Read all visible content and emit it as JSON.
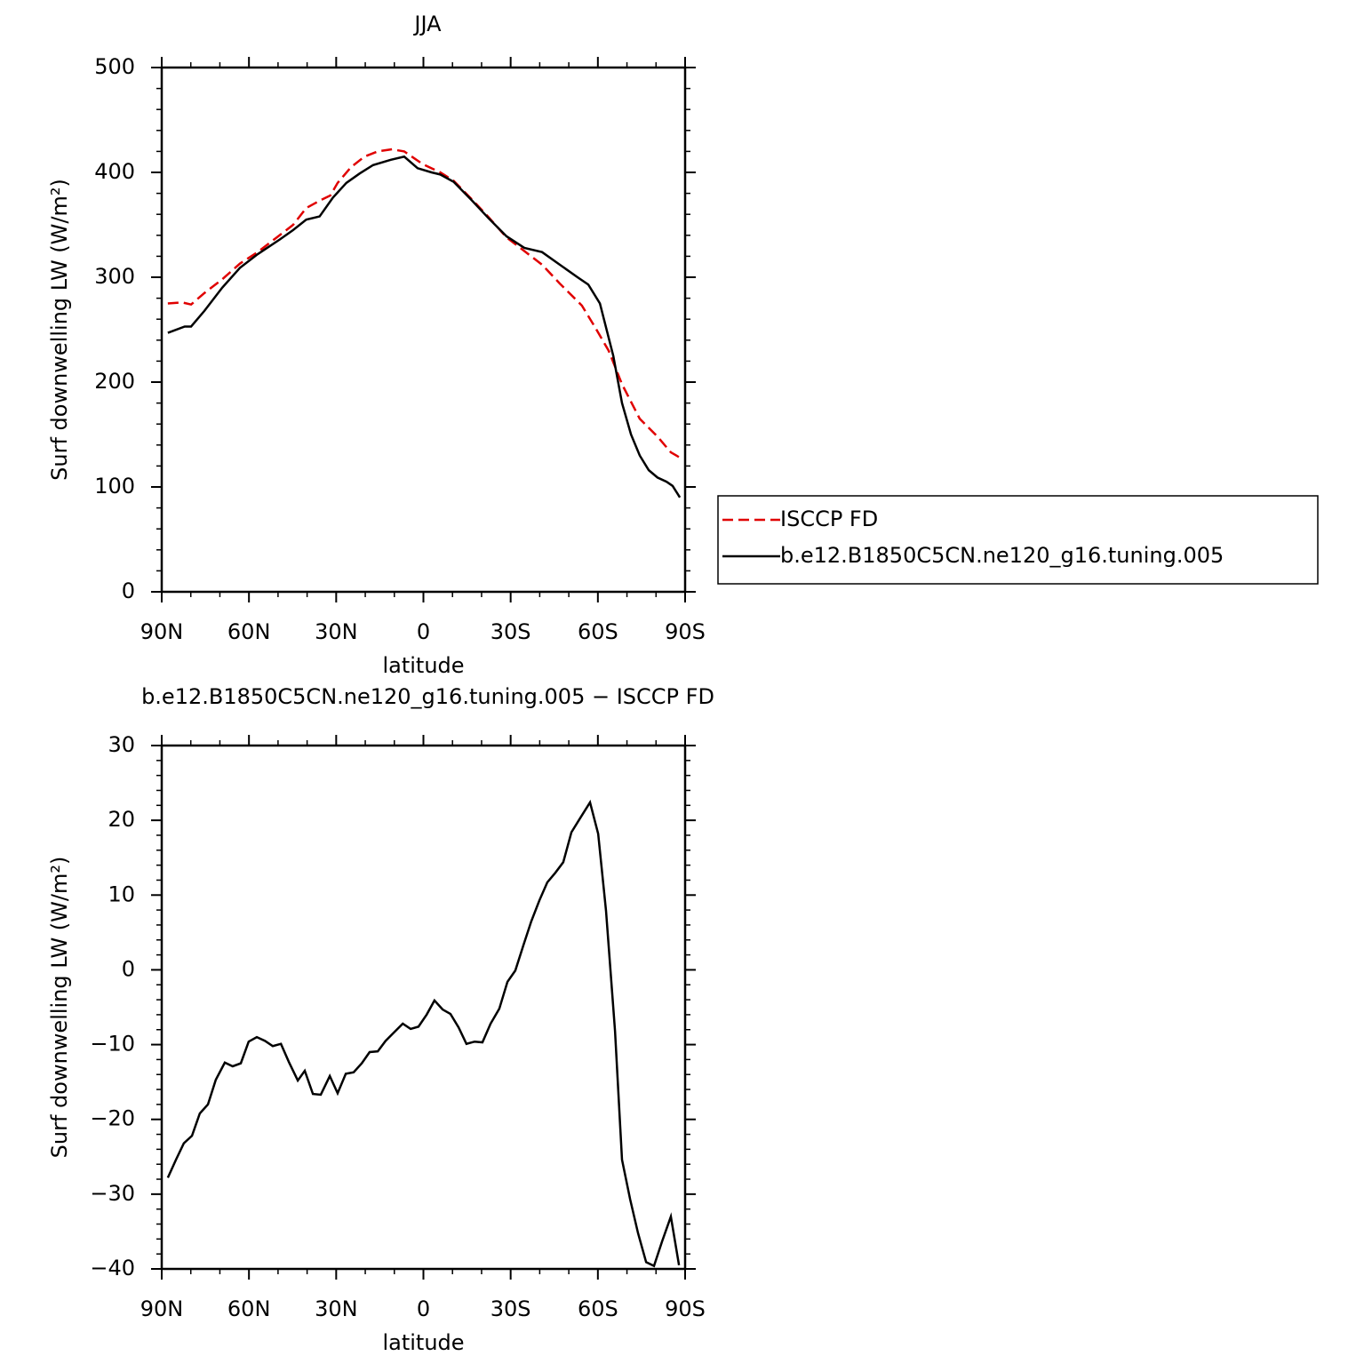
{
  "chart_data": [
    {
      "type": "line",
      "title": "JJA",
      "xlabel": "latitude",
      "ylabel": "Surf downwelling LW (W/m²)",
      "xlim": [
        90,
        -90
      ],
      "xticks": [
        {
          "value": 90,
          "label": "90N"
        },
        {
          "value": 60,
          "label": "60N"
        },
        {
          "value": 30,
          "label": "30N"
        },
        0,
        {
          "value": -30,
          "label": "30S"
        },
        {
          "value": -60,
          "label": "60S"
        },
        {
          "value": -90,
          "label": "90S"
        }
      ],
      "xminor": [
        80,
        70,
        50,
        40,
        20,
        10,
        -10,
        -20,
        -40,
        -50,
        -70,
        -80
      ],
      "ylim": [
        0,
        500
      ],
      "yticks": [
        0,
        100,
        200,
        300,
        400,
        500
      ],
      "yminor": [
        20,
        40,
        60,
        80,
        120,
        140,
        160,
        180,
        220,
        240,
        260,
        280,
        320,
        340,
        360,
        380,
        420,
        440,
        460,
        480
      ],
      "legend": "right",
      "series": [
        {
          "name": "ISCCP FD",
          "color": "#e00000",
          "dash": "dashed",
          "x": [
            87.9,
            83.0,
            79.9,
            75.3,
            69.2,
            63.1,
            57.0,
            50.9,
            44.8,
            40.3,
            35.7,
            32.0,
            29.5,
            24.9,
            20.3,
            15.7,
            10.8,
            6.6,
            0.3,
            -5.8,
            -10.4,
            -16.4,
            -22.5,
            -28.6,
            -34.7,
            -40.8,
            -46.9,
            -54.5,
            -59.1,
            -63.7,
            -68.3,
            -74.4,
            -80.5,
            -85.1,
            -88.2
          ],
          "values": [
            275,
            276,
            274,
            285,
            298,
            313,
            324,
            337,
            350,
            366,
            373,
            378,
            390,
            405,
            415,
            420,
            422,
            420,
            408,
            400,
            392,
            375,
            357,
            338,
            325,
            312,
            294,
            273,
            252,
            230,
            198,
            165,
            148,
            133,
            128
          ]
        },
        {
          "name": "b.e12.B1850C5CN.ne120_g16.tuning.005",
          "color": "#000000",
          "dash": "solid",
          "x": [
            87.9,
            82.1,
            79.9,
            75.3,
            69.2,
            63.1,
            57.0,
            49.4,
            44.8,
            40.3,
            35.7,
            31.1,
            26.5,
            21.9,
            17.3,
            11.2,
            6.6,
            2.0,
            -2.8,
            -5.8,
            -10.4,
            -16.4,
            -22.5,
            -28.6,
            -34.7,
            -40.8,
            -46.9,
            -53.0,
            -56.7,
            -60.7,
            -65.3,
            -68.3,
            -71.4,
            -74.4,
            -77.5,
            -80.5,
            -83.6,
            -85.7,
            -88.2
          ],
          "values": [
            247,
            253,
            253,
            268,
            290,
            309,
            322,
            336,
            345,
            355,
            358,
            376,
            390,
            399,
            407,
            412,
            415,
            404,
            400,
            398,
            391,
            374,
            356,
            339,
            328,
            324,
            312,
            300,
            293,
            275,
            225,
            180,
            150,
            130,
            116,
            109,
            105,
            101,
            90
          ]
        }
      ]
    },
    {
      "type": "line",
      "title": "b.e12.B1850C5CN.ne120_g16.tuning.005 − ISCCP FD",
      "xlabel": "latitude",
      "ylabel": "Surf downwelling LW (W/m²)",
      "xlim": [
        90,
        -90
      ],
      "xticks": [
        {
          "value": 90,
          "label": "90N"
        },
        {
          "value": 60,
          "label": "60N"
        },
        {
          "value": 30,
          "label": "30N"
        },
        0,
        {
          "value": -30,
          "label": "30S"
        },
        {
          "value": -60,
          "label": "60S"
        },
        {
          "value": -90,
          "label": "90S"
        }
      ],
      "xminor": [
        80,
        70,
        50,
        40,
        20,
        10,
        -10,
        -20,
        -40,
        -50,
        -70,
        -80
      ],
      "ylim": [
        -40,
        30
      ],
      "yticks": [
        {
          "value": -40,
          "label": "−40"
        },
        {
          "value": -30,
          "label": "−30"
        },
        {
          "value": -20,
          "label": "−20"
        },
        {
          "value": -10,
          "label": "−10"
        },
        0,
        10,
        20,
        30
      ],
      "yminor": [
        -38,
        -36,
        -34,
        -32,
        -28,
        -26,
        -24,
        -22,
        -18,
        -16,
        -14,
        -12,
        -8,
        -6,
        -4,
        -2,
        2,
        4,
        6,
        8,
        12,
        14,
        16,
        18,
        22,
        24,
        26,
        28
      ],
      "series": [
        {
          "color": "#000000",
          "dash": "solid",
          "x": [
            87.9,
            85.1,
            82.4,
            79.6,
            76.9,
            74.1,
            71.4,
            68.3,
            65.6,
            62.8,
            60.1,
            57.3,
            54.5,
            51.8,
            49.0,
            46.3,
            43.2,
            40.8,
            38.0,
            35.3,
            32.2,
            29.5,
            26.7,
            24.0,
            21.2,
            18.5,
            15.7,
            13.0,
            10.2,
            7.1,
            4.4,
            1.7,
            -1.1,
            -3.8,
            -6.6,
            -9.3,
            -12.1,
            -14.8,
            -17.6,
            -20.3,
            -23.1,
            -26.1,
            -28.9,
            -31.6,
            -34.4,
            -37.1,
            -39.9,
            -42.6,
            -45.4,
            -48.1,
            -50.9,
            -53.6,
            -57.3,
            -60.1,
            -62.8,
            -65.9,
            -68.3,
            -71.1,
            -73.8,
            -76.6,
            -79.3,
            -82.1,
            -85.1,
            -87.9
          ],
          "values": [
            -27.8,
            -25.4,
            -23.2,
            -22.2,
            -19.2,
            -18.0,
            -14.7,
            -12.4,
            -12.9,
            -12.5,
            -9.6,
            -9.0,
            -9.5,
            -10.2,
            -9.9,
            -12.3,
            -14.8,
            -13.5,
            -16.6,
            -16.7,
            -14.2,
            -16.5,
            -13.9,
            -13.7,
            -12.5,
            -11.0,
            -10.9,
            -9.5,
            -8.4,
            -7.2,
            -7.9,
            -7.6,
            -6.0,
            -4.1,
            -5.3,
            -5.9,
            -7.7,
            -9.9,
            -9.6,
            -9.7,
            -7.2,
            -5.2,
            -1.6,
            -0.1,
            3.3,
            6.5,
            9.3,
            11.7,
            13.0,
            14.4,
            18.4,
            20.1,
            22.4,
            18.2,
            7.9,
            -8.2,
            -25.4,
            -30.7,
            -35.2,
            -39.1,
            -39.6,
            -36.3,
            -33.0,
            -39.5
          ]
        }
      ]
    }
  ]
}
